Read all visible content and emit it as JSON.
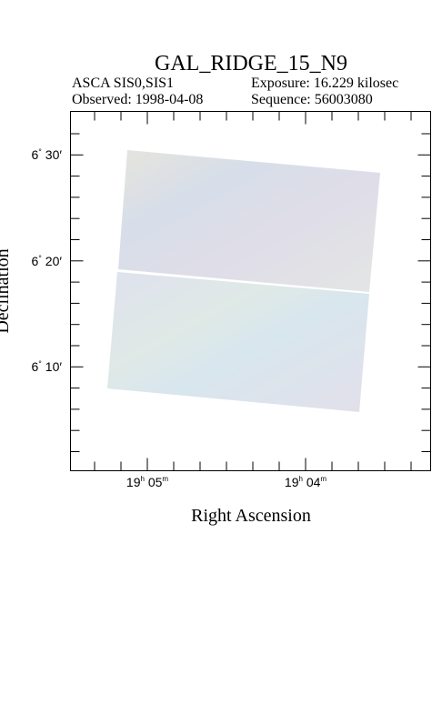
{
  "header": {
    "title": "GAL_RIDGE_15_N9",
    "instrument": "ASCA SIS0,SIS1",
    "exposure": "Exposure: 16.229 kilosec",
    "observed": "Observed: 1998-04-08",
    "sequence": "Sequence: 56003080"
  },
  "axes": {
    "x_label": "Right Ascension",
    "y_label": "Declination",
    "x_tick_labels": [
      [
        "19",
        "h",
        " 05",
        "m"
      ],
      [
        "19",
        "h",
        " 04",
        "m"
      ]
    ],
    "y_tick_labels": [
      [
        "6",
        "°",
        " 30′"
      ],
      [
        "6",
        "°",
        " 20′"
      ],
      [
        "6",
        "°",
        " 10′"
      ]
    ]
  }
}
